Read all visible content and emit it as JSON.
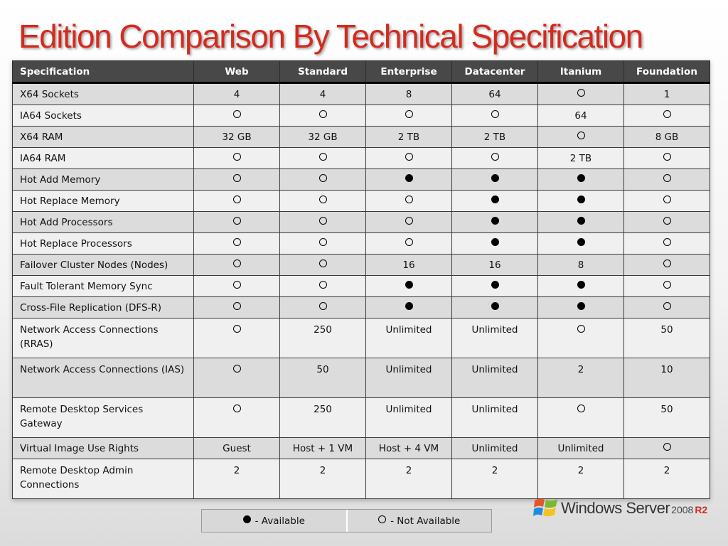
{
  "title": "Edition Comparison By Technical Specification",
  "columns": [
    "Specification",
    "Web",
    "Standard",
    "Enterprise",
    "Datacenter",
    "Itanium",
    "Foundation"
  ],
  "rows": [
    {
      "label": "X64 Sockets",
      "cells": [
        "4",
        "4",
        "8",
        "64",
        "open",
        "1"
      ]
    },
    {
      "label": "IA64 Sockets",
      "cells": [
        "open",
        "open",
        "open",
        "open",
        "64",
        "open"
      ]
    },
    {
      "label": "X64 RAM",
      "cells": [
        "32 GB",
        "32 GB",
        "2 TB",
        "2 TB",
        "open",
        "8 GB"
      ]
    },
    {
      "label": "IA64 RAM",
      "cells": [
        "open",
        "open",
        "open",
        "open",
        "2 TB",
        "open"
      ]
    },
    {
      "label": "Hot Add Memory",
      "cells": [
        "open",
        "open",
        "filled",
        "filled",
        "filled",
        "open"
      ]
    },
    {
      "label": "Hot Replace Memory",
      "cells": [
        "open",
        "open",
        "open",
        "filled",
        "filled",
        "open"
      ]
    },
    {
      "label": "Hot Add Processors",
      "cells": [
        "open",
        "open",
        "open",
        "filled",
        "filled",
        "open"
      ]
    },
    {
      "label": "Hot Replace Processors",
      "cells": [
        "open",
        "open",
        "open",
        "filled",
        "filled",
        "open"
      ]
    },
    {
      "label": "Failover Cluster Nodes (Nodes)",
      "cells": [
        "open",
        "open",
        "16",
        "16",
        "8",
        "open"
      ]
    },
    {
      "label": "Fault Tolerant Memory Sync",
      "cells": [
        "open",
        "open",
        "filled",
        "filled",
        "filled",
        "open"
      ]
    },
    {
      "label": "Cross-File Replication (DFS-R)",
      "cells": [
        "open",
        "open",
        "filled",
        "filled",
        "filled",
        "open"
      ]
    },
    {
      "label": "Network Access Connections (RRAS)",
      "cells": [
        "open",
        "250",
        "Unlimited",
        "Unlimited",
        "open",
        "50"
      ],
      "tall": true
    },
    {
      "label": "Network Access Connections (IAS)",
      "cells": [
        "open",
        "50",
        "Unlimited",
        "Unlimited",
        "2",
        "10"
      ],
      "tall": true
    },
    {
      "label": "Remote Desktop Services Gateway",
      "cells": [
        "open",
        "250",
        "Unlimited",
        "Unlimited",
        "open",
        "50"
      ],
      "tall": true
    },
    {
      "label": "Virtual Image Use Rights",
      "cells": [
        "Guest",
        "Host + 1 VM",
        "Host + 4 VM",
        "Unlimited",
        "Unlimited",
        "open"
      ]
    },
    {
      "label": "Remote Desktop Admin Connections",
      "cells": [
        "2",
        "2",
        "2",
        "2",
        "2",
        "2"
      ],
      "tall": true
    }
  ],
  "legend": {
    "available": "- Available",
    "not_available": "- Not Available"
  },
  "logo": {
    "brand": "Windows Server",
    "year": "2008",
    "release": "R2",
    "icon": "windows-flag-icon"
  },
  "colors": {
    "title": "#d42a1e",
    "header_bg": "#484848",
    "row_odd": "#dcdcdc",
    "row_even": "#f0f0f0"
  }
}
